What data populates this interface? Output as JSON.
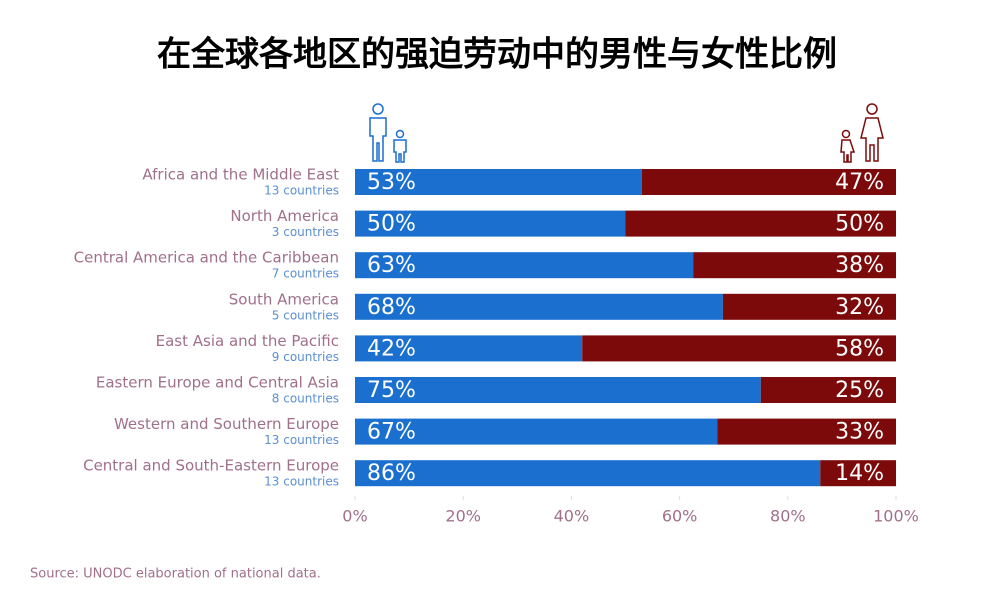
{
  "chart_data": {
    "type": "stacked-bar-horizontal",
    "title": "在全球各地区的强迫劳动中的男性与女性比例",
    "categories": [
      "Africa and the Middle East",
      "North America",
      "Central America and the Caribbean",
      "South America",
      "East Asia and the Pacific",
      "Eastern Europe and Central Asia",
      "Western and Southern Europe",
      "Central and South-Eastern Europe"
    ],
    "category_notes": [
      "13 countries",
      "3 countries",
      "7 countries",
      "5 countries",
      "9 countries",
      "8 countries",
      "13 countries",
      "13 countries"
    ],
    "series": [
      {
        "color": "#1a6fcf",
        "values": [
          53,
          50,
          62.5,
          68,
          42,
          75,
          67,
          86
        ],
        "value_labels": [
          "53%",
          "50%",
          "63%",
          "68%",
          "42%",
          "75%",
          "67%",
          "86%"
        ]
      },
      {
        "color": "#7d0a0a",
        "values": [
          47,
          50,
          37.5,
          32,
          58,
          25,
          33,
          14
        ],
        "value_labels": [
          "47%",
          "50%",
          "38%",
          "32%",
          "58%",
          "25%",
          "33%",
          "14%"
        ]
      }
    ],
    "xlim": [
      0,
      100
    ],
    "xticks": [
      {
        "value": 0,
        "label": "0%"
      },
      {
        "value": 20,
        "label": "20%"
      },
      {
        "value": 40,
        "label": "40%"
      },
      {
        "value": 60,
        "label": "60%"
      },
      {
        "value": 80,
        "label": "80%"
      },
      {
        "value": 100,
        "label": "100%"
      }
    ],
    "source": "Source: UNODC elaboration of national data."
  }
}
